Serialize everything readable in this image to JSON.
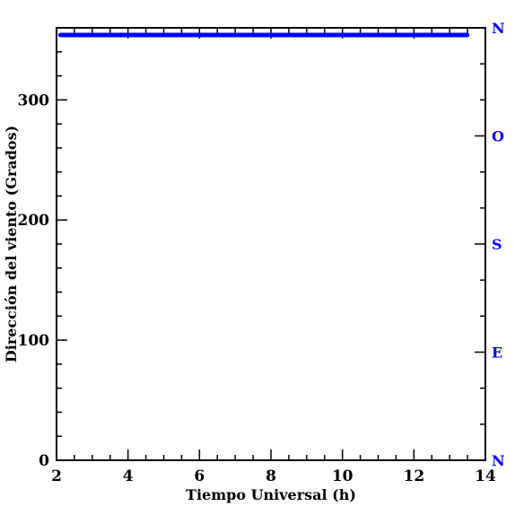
{
  "chart_data": {
    "type": "line",
    "title": "",
    "xlabel": "Tiempo Universal (h)",
    "ylabel": "Dirección del viento (Grados)",
    "xlim": [
      2,
      14
    ],
    "ylim": [
      0,
      360
    ],
    "x_ticks": [
      2,
      4,
      6,
      8,
      10,
      12,
      14
    ],
    "y_ticks": [
      0,
      100,
      200,
      300
    ],
    "x_tick_labels": [
      "2",
      "4",
      "6",
      "8",
      "10",
      "12",
      "14"
    ],
    "y_tick_labels": [
      "0",
      "100",
      "200",
      "300"
    ],
    "right_axis": {
      "labels": [
        "N",
        "O",
        "S",
        "E",
        "N"
      ],
      "values": [
        360,
        270,
        180,
        90,
        0
      ],
      "color": "#0000ff"
    },
    "grid": false,
    "series": [
      {
        "color": "#0000ff",
        "x": [
          2.1,
          3,
          4,
          5,
          6,
          7,
          8,
          9,
          10,
          11,
          12,
          13,
          13.5
        ],
        "y": [
          354,
          354,
          354,
          354,
          354,
          354,
          354,
          354,
          354,
          354,
          354,
          354,
          354
        ]
      }
    ]
  }
}
